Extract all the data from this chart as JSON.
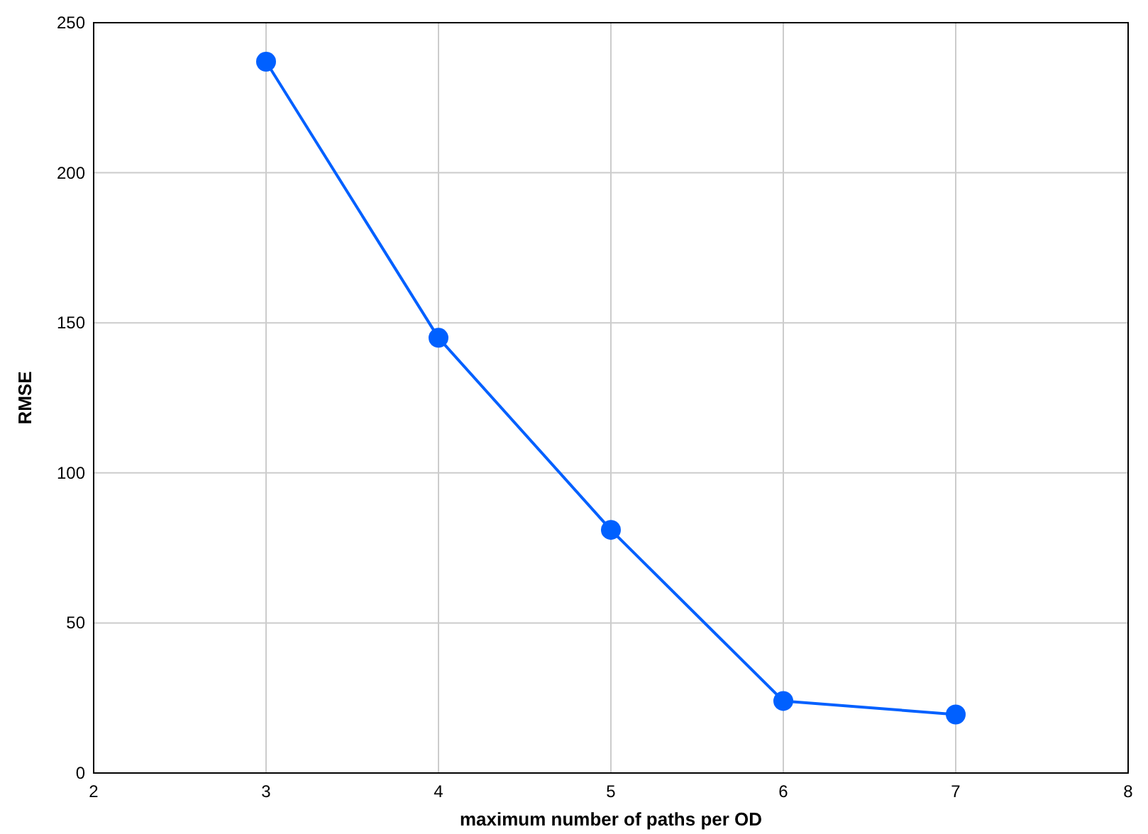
{
  "chart_data": {
    "type": "line",
    "xlabel": "maximum number of paths per OD",
    "ylabel": "RMSE",
    "x": [
      3,
      4,
      5,
      6,
      7
    ],
    "series": [
      {
        "color": "#0060ff",
        "values": [
          237,
          145,
          81,
          24,
          19.5
        ]
      }
    ],
    "xlim": [
      2,
      8
    ],
    "xticks": [
      2,
      3,
      4,
      5,
      6,
      7,
      8
    ],
    "ylim": [
      0,
      250
    ],
    "yticks": [
      0,
      50,
      100,
      150,
      200,
      250
    ],
    "grid": true,
    "marker": "circle",
    "line_style": "solid"
  }
}
